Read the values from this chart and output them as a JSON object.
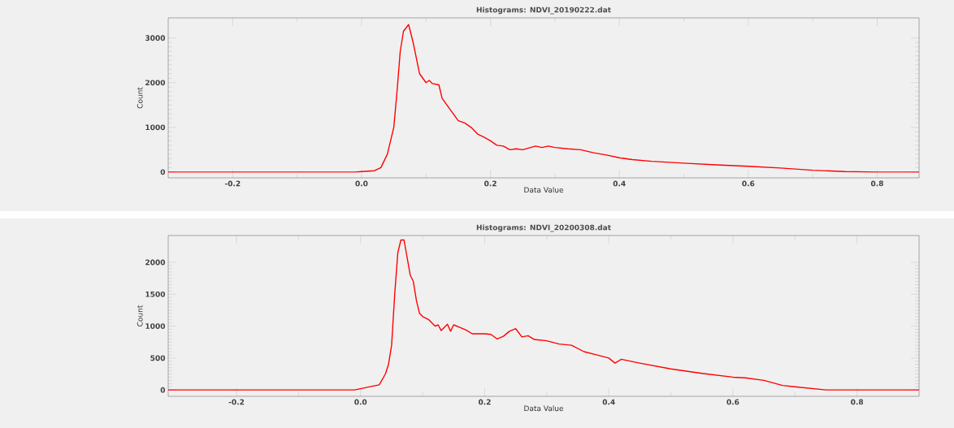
{
  "chart_data": [
    {
      "type": "line",
      "title": "Histograms: NDVI_20190222.dat",
      "xlabel": "Data Value",
      "ylabel": "Count",
      "color": "#ff0000",
      "x": [
        -0.3,
        -0.01,
        0.0,
        0.02,
        0.03,
        0.04,
        0.05,
        0.055,
        0.06,
        0.065,
        0.073,
        0.08,
        0.09,
        0.1,
        0.105,
        0.11,
        0.12,
        0.125,
        0.14,
        0.15,
        0.16,
        0.17,
        0.18,
        0.19,
        0.2,
        0.21,
        0.22,
        0.23,
        0.24,
        0.25,
        0.26,
        0.27,
        0.28,
        0.29,
        0.3,
        0.32,
        0.34,
        0.36,
        0.38,
        0.4,
        0.42,
        0.45,
        0.5,
        0.55,
        0.6,
        0.65,
        0.7,
        0.75,
        0.8,
        0.865
      ],
      "values": [
        0,
        0,
        10,
        30,
        100,
        400,
        1000,
        1800,
        2700,
        3150,
        3300,
        2900,
        2200,
        2000,
        2050,
        1980,
        1950,
        1650,
        1350,
        1150,
        1100,
        1000,
        850,
        780,
        700,
        600,
        580,
        500,
        520,
        500,
        540,
        580,
        550,
        580,
        550,
        520,
        500,
        430,
        380,
        320,
        280,
        240,
        200,
        160,
        130,
        90,
        40,
        10,
        0,
        0
      ],
      "xlim": [
        -0.3,
        0.865
      ],
      "ylim": [
        -130,
        3450
      ],
      "xticks": [
        -0.2,
        {
          "value": 0,
          "label": "0.0"
        },
        0.2,
        0.4,
        0.6,
        0.8
      ],
      "yticks": [
        0,
        1000,
        2000,
        3000
      ]
    },
    {
      "type": "line",
      "title": "Histograms: NDVI_20200308.dat",
      "xlabel": "Data Value",
      "ylabel": "Count",
      "color": "#ff0000",
      "x": [
        -0.31,
        -0.01,
        0.0,
        0.02,
        0.03,
        0.04,
        0.045,
        0.05,
        0.055,
        0.06,
        0.065,
        0.07,
        0.08,
        0.085,
        0.09,
        0.095,
        0.1,
        0.11,
        0.12,
        0.125,
        0.13,
        0.14,
        0.145,
        0.15,
        0.16,
        0.17,
        0.18,
        0.2,
        0.21,
        0.22,
        0.23,
        0.24,
        0.25,
        0.26,
        0.27,
        0.28,
        0.3,
        0.32,
        0.34,
        0.36,
        0.38,
        0.4,
        0.41,
        0.42,
        0.45,
        0.5,
        0.55,
        0.6,
        0.62,
        0.65,
        0.68,
        0.7,
        0.75,
        0.9
      ],
      "values": [
        0,
        0,
        20,
        60,
        80,
        250,
        400,
        700,
        1500,
        2150,
        2350,
        2350,
        1800,
        1700,
        1400,
        1200,
        1150,
        1100,
        1000,
        1020,
        930,
        1030,
        920,
        1020,
        980,
        940,
        880,
        880,
        870,
        800,
        840,
        920,
        960,
        830,
        850,
        790,
        770,
        720,
        700,
        600,
        550,
        500,
        420,
        480,
        420,
        330,
        260,
        200,
        190,
        150,
        70,
        50,
        0,
        0
      ],
      "xlim": [
        -0.31,
        0.9
      ],
      "ylim": [
        -100,
        2420
      ],
      "xticks": [
        -0.2,
        {
          "value": 0,
          "label": "0.0"
        },
        0.2,
        0.4,
        0.6,
        0.8
      ],
      "yticks": [
        0,
        500,
        1000,
        1500,
        2000
      ]
    }
  ]
}
